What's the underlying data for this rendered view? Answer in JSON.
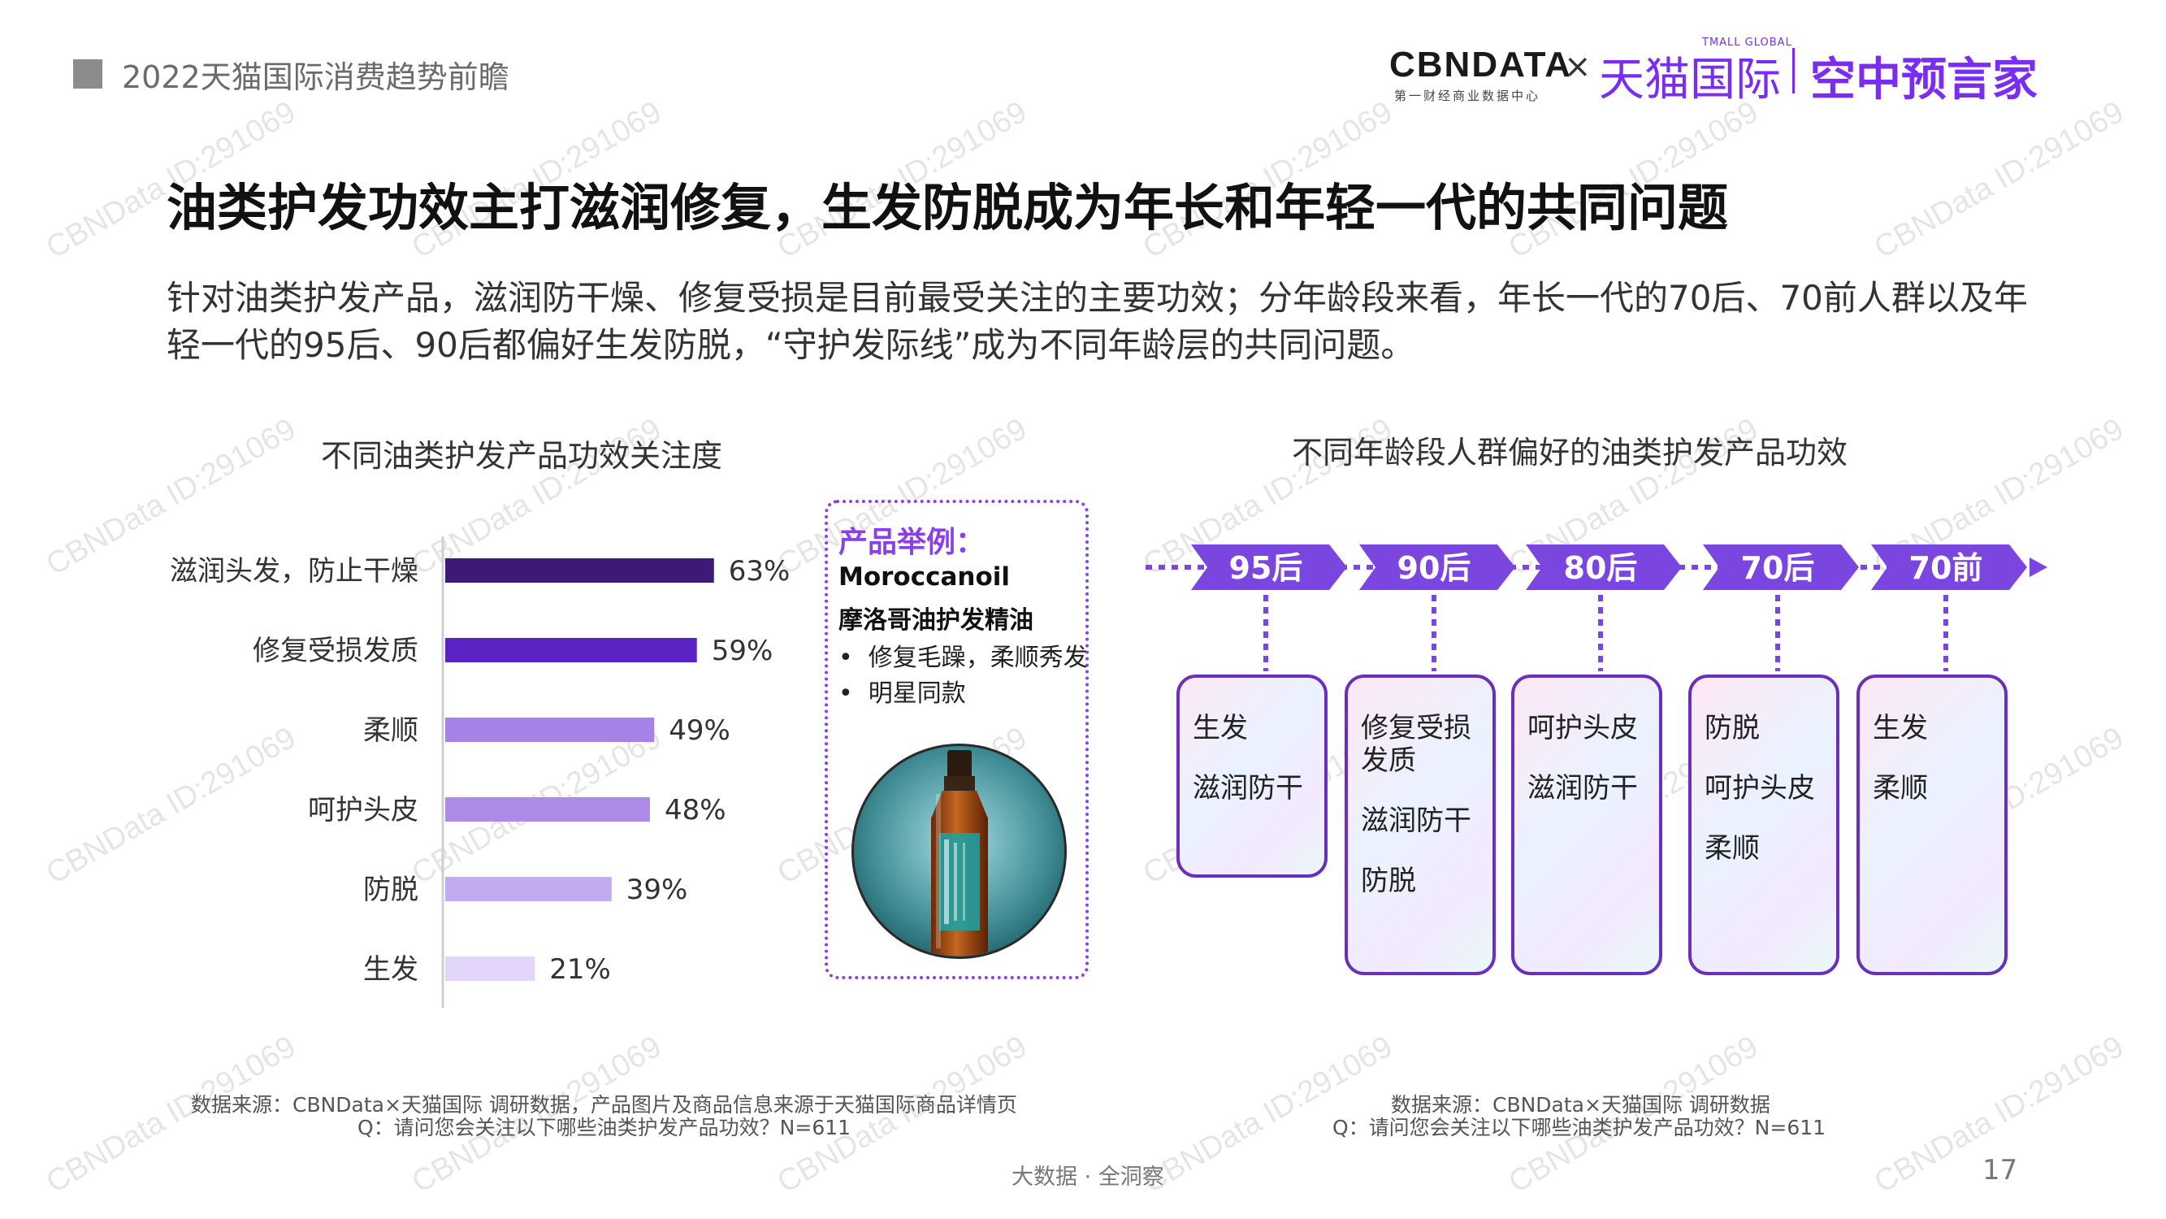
{
  "header": {
    "report_title": "2022天猫国际消费趋势前瞻",
    "logo_cbndata": "CBNDATA",
    "logo_cbndata_sub": "第一财经商业数据中心",
    "logo_separator": "×",
    "logo_tmall_small": "TMALL GLOBAL",
    "logo_tmall": "天猫国际",
    "logo_kzyyj": "空中预言家"
  },
  "headline": "油类护发功效主打滋润修复，生发防脱成为年长和年轻一代的共同问题",
  "subheadline": "针对油类护发产品，滋润防干燥、修复受损是目前最受关注的主要功效；分年龄段来看，年长一代的70后、70前人群以及年轻一代的95后、90后都偏好生发防脱，“守护发际线”成为不同年龄层的共同问题。",
  "chart_data": [
    {
      "type": "bar",
      "orientation": "horizontal",
      "title": "不同油类护发产品功效关注度",
      "categories": [
        "滋润头发，防止干燥",
        "修复受损发质",
        "柔顺",
        "呵护头皮",
        "防脱",
        "生发"
      ],
      "values": [
        63,
        59,
        49,
        48,
        39,
        21
      ],
      "value_labels": [
        "63%",
        "59%",
        "49%",
        "48%",
        "39%",
        "21%"
      ],
      "unit": "%",
      "colors": [
        "#3d1a78",
        "#5b22c4",
        "#a482e6",
        "#ad8ce8",
        "#c3abf0",
        "#e2d6fa"
      ],
      "xlim": [
        0,
        100
      ]
    },
    {
      "type": "table",
      "title": "不同年龄段人群偏好的油类护发产品功效",
      "groups": [
        {
          "label": "95后",
          "items": [
            "生发",
            "滋润防干"
          ]
        },
        {
          "label": "90后",
          "items": [
            "修复受损\n发质",
            "滋润防干",
            "防脱"
          ]
        },
        {
          "label": "80后",
          "items": [
            "呵护头皮",
            "滋润防干"
          ]
        },
        {
          "label": "70后",
          "items": [
            "防脱",
            "呵护头皮",
            "柔顺"
          ]
        },
        {
          "label": "70前",
          "items": [
            "生发",
            "柔顺"
          ]
        }
      ],
      "accent": "#7b45e0"
    }
  ],
  "product_example": {
    "label": "产品举例：",
    "brand": "Moroccanoil",
    "name": "摩洛哥油护发精油",
    "bullets": [
      "修复毛躁，柔顺秀发",
      "明星同款"
    ]
  },
  "footnotes": {
    "left_source": "数据来源：CBNData×天猫国际 调研数据，产品图片及商品信息来源于天猫国际商品详情页",
    "left_question": "Q：请问您会关注以下哪些油类护发产品功效？N=611",
    "right_source": "数据来源：CBNData×天猫国际 调研数据",
    "right_question": "Q：请问您会关注以下哪些油类护发产品功效？N=611"
  },
  "footer": {
    "tagline": "大数据 · 全洞察",
    "page_number": "17"
  },
  "watermark": "CBNData ID:291069"
}
